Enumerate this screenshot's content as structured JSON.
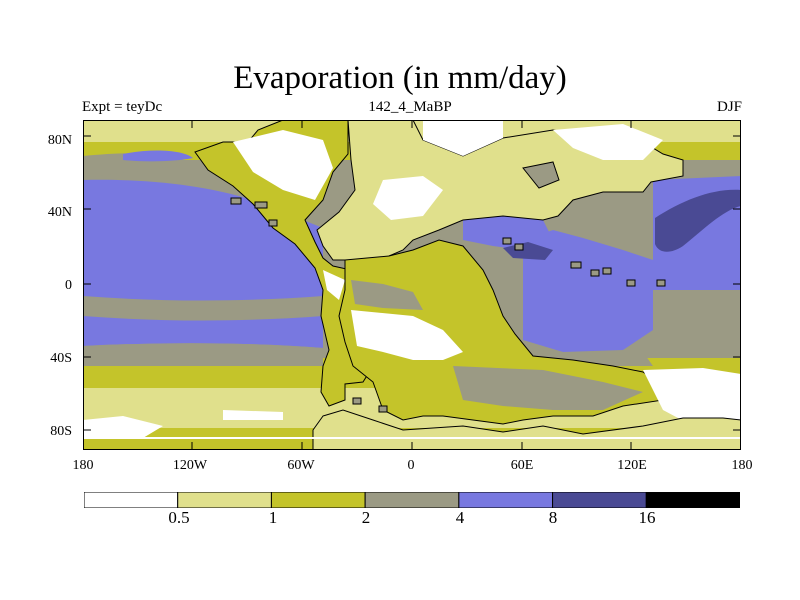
{
  "title": "Evaporation (in mm/day)",
  "subtitle_left": "Expt = teyDc",
  "subtitle_center": "142_4_MaBP",
  "subtitle_right": "DJF",
  "lat_labels": [
    "80N",
    "40N",
    "0",
    "40S",
    "80S"
  ],
  "lon_labels": [
    "180",
    "120W",
    "60W",
    "0",
    "60E",
    "120E",
    "180"
  ],
  "colorbar": {
    "labels": [
      "0.5",
      "1",
      "2",
      "4",
      "8",
      "16"
    ],
    "colors": [
      "#ffffff",
      "#e0e08c",
      "#c4c42a",
      "#9b9a84",
      "#7878e0",
      "#4a4a94",
      "#000000"
    ]
  },
  "colors": {
    "white": "#ffffff",
    "pale": "#e0e08c",
    "olive": "#c4c42a",
    "gray": "#9b9a84",
    "blue": "#7878e0",
    "navy": "#4a4a94"
  }
}
